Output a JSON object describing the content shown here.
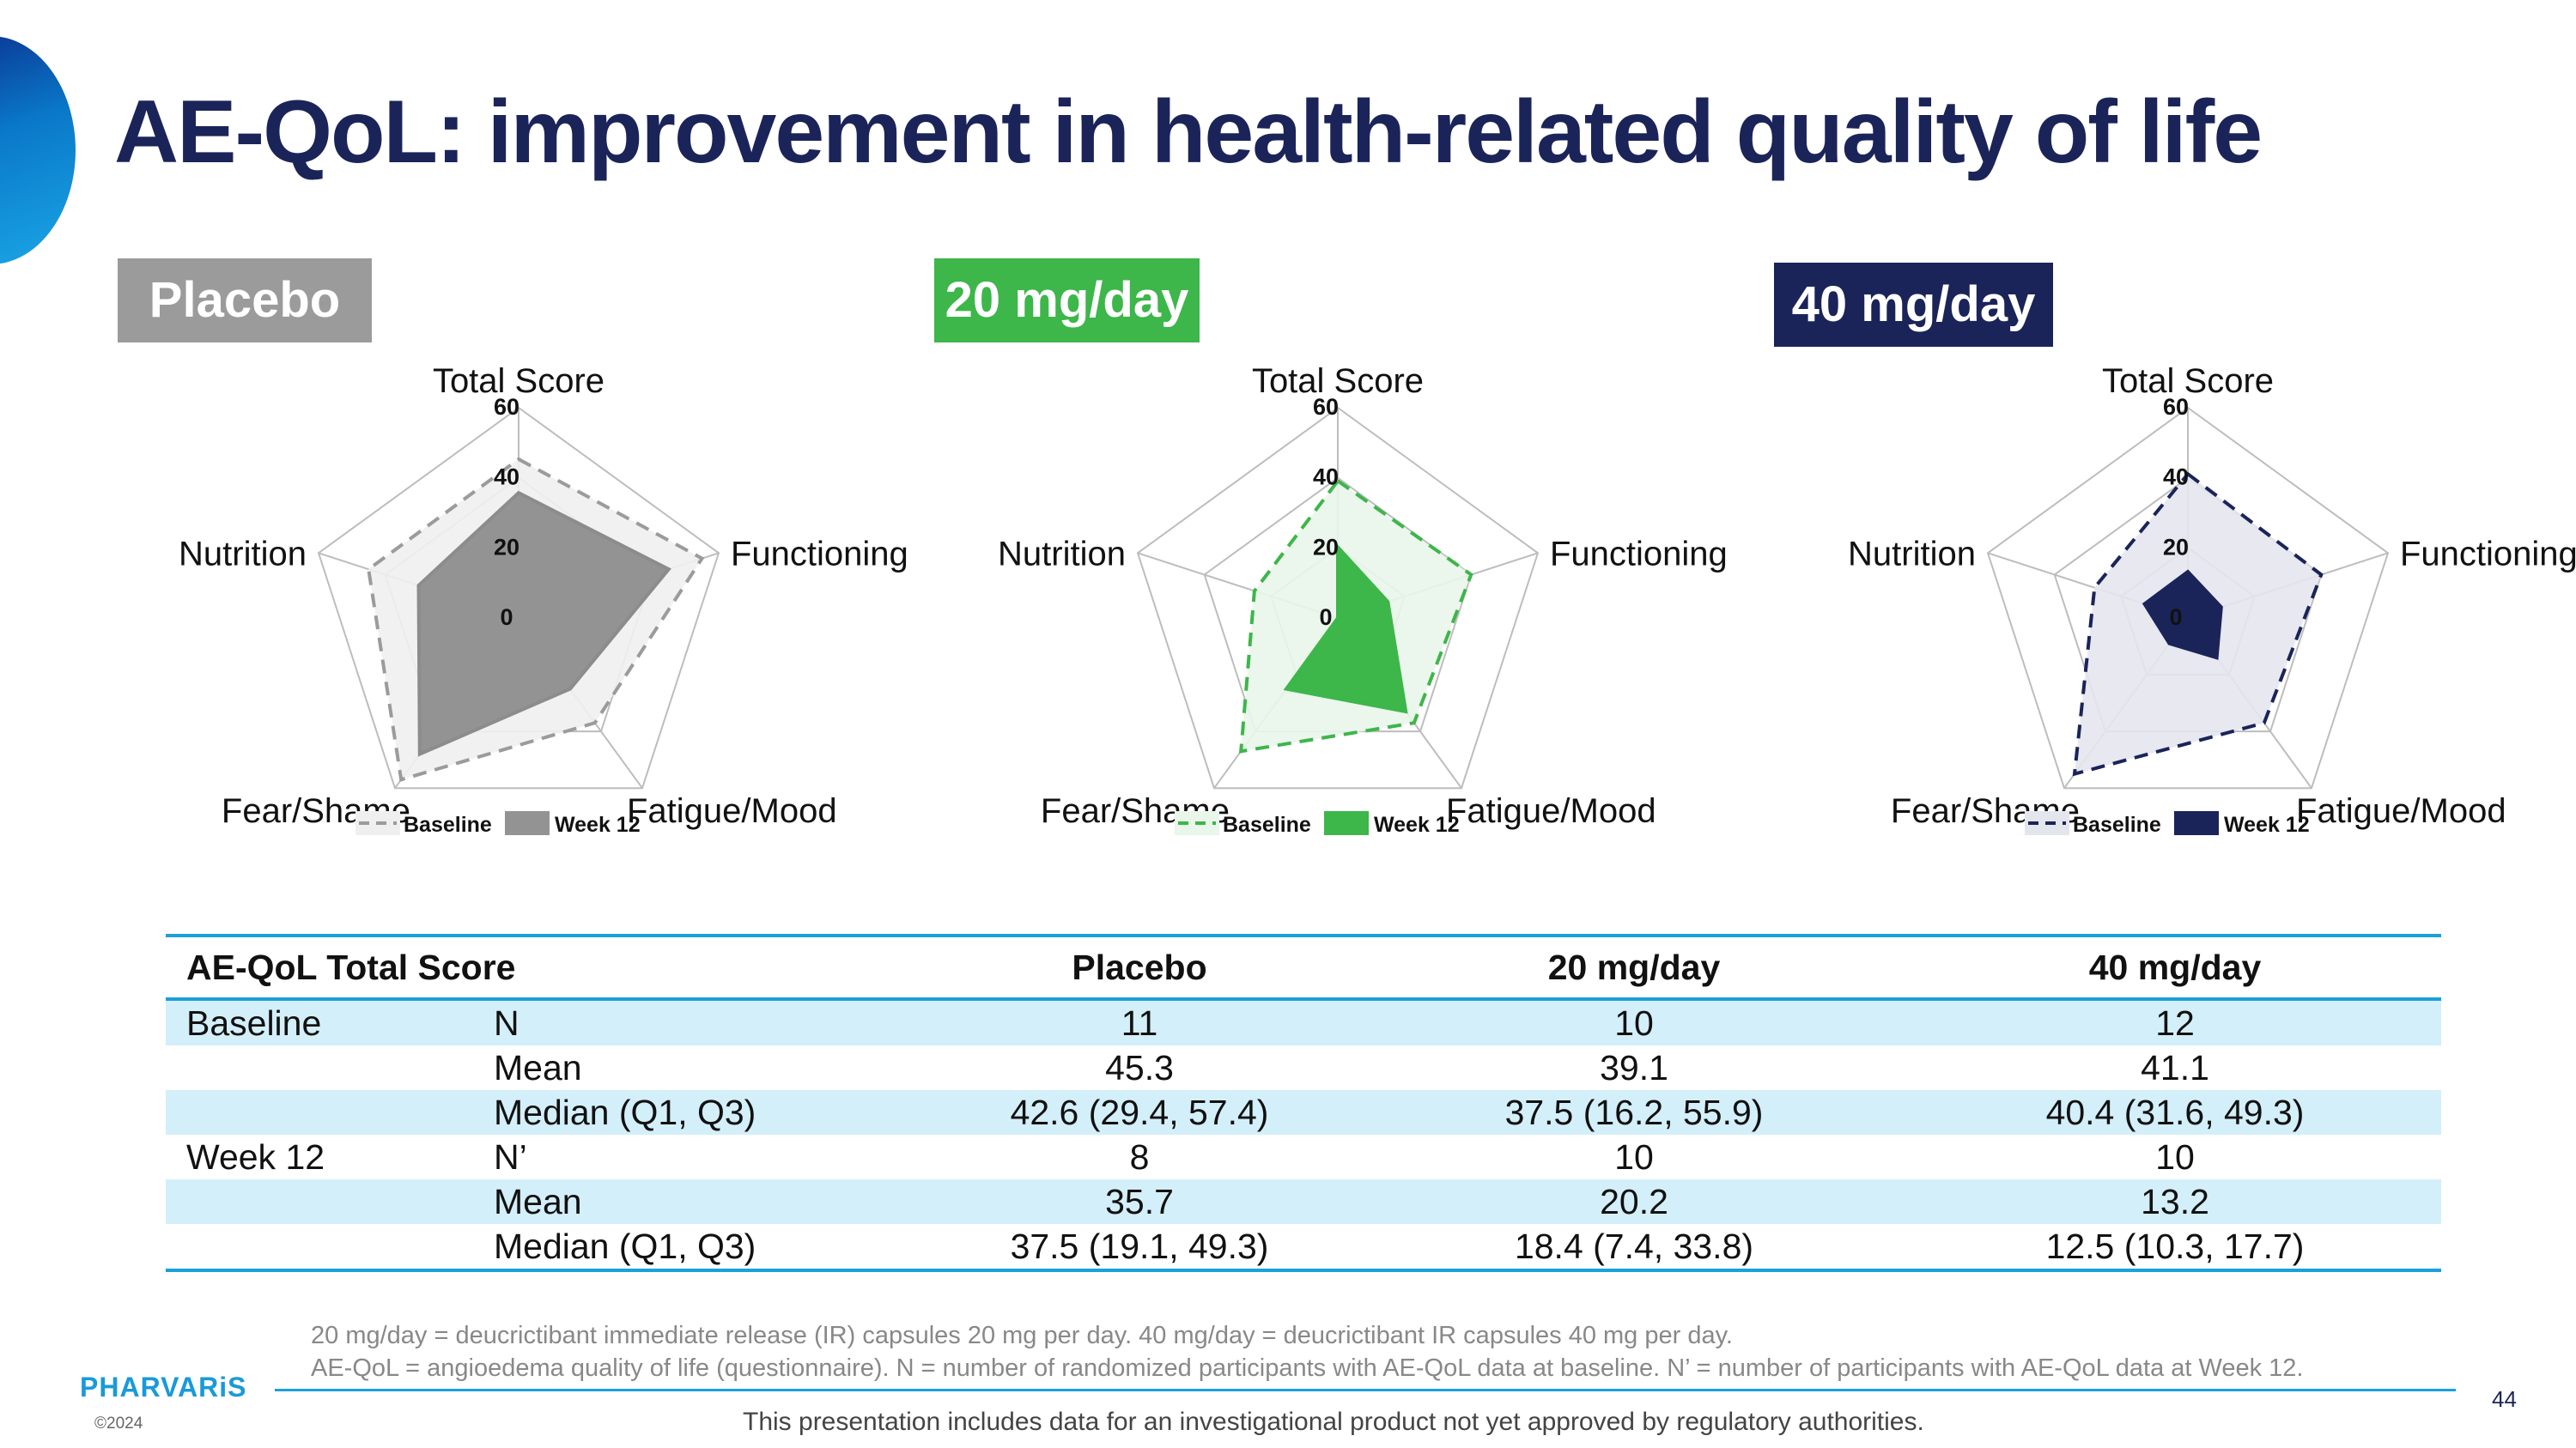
{
  "slide": {
    "title": "AE-QoL: improvement in health-related quality of life",
    "footnotes": [
      "20 mg/day = deucrictibant immediate release (IR) capsules 20 mg per day. 40 mg/day = deucrictibant IR capsules 40 mg per day.",
      "AE-QoL = angioedema quality of life (questionnaire).  N = number of randomized participants with AE-QoL data at baseline. N’ = number of participants with AE-QoL data at Week 12."
    ],
    "disclaimer": "This presentation includes data for an investigational product not yet approved by regulatory authorities.",
    "logo": "PHARVARiS",
    "copyright": "©2024",
    "page_number": "44"
  },
  "chart_data": [
    {
      "type": "radar",
      "badge": "Placebo",
      "badge_color": "#9b9b9b",
      "axes": [
        "Total Score",
        "Functioning",
        "Fatigue/Mood",
        "Fear/Shame",
        "Nutrition"
      ],
      "ticks": [
        "0",
        "20",
        "40",
        "60"
      ],
      "range": [
        0,
        60
      ],
      "series": [
        {
          "name": "Baseline",
          "values": [
            45.3,
            55,
            37,
            57,
            45
          ],
          "style": "dashed",
          "stroke": "#9b9b9b",
          "fill": "#efefef"
        },
        {
          "name": "Week 12",
          "values": [
            35.7,
            45,
            25,
            48,
            30
          ],
          "style": "solid",
          "stroke": "#8c8c8c",
          "fill": "#939393"
        }
      ]
    },
    {
      "type": "radar",
      "badge": "20 mg/day",
      "badge_color": "#3db64a",
      "axes": [
        "Total Score",
        "Functioning",
        "Fatigue/Mood",
        "Fear/Shame",
        "Nutrition"
      ],
      "ticks": [
        "0",
        "20",
        "40",
        "60"
      ],
      "range": [
        0,
        60
      ],
      "series": [
        {
          "name": "Baseline",
          "values": [
            39.1,
            40,
            37,
            47,
            25
          ],
          "style": "dashed",
          "stroke": "#3db64a",
          "fill": "#e9f6ea"
        },
        {
          "name": "Week 12",
          "values": [
            20.2,
            15,
            33,
            25,
            0
          ],
          "style": "solid",
          "stroke": "#3db64a",
          "fill": "#3db64a"
        }
      ]
    },
    {
      "type": "radar",
      "badge": "40 mg/day",
      "badge_color": "#1b2459",
      "axes": [
        "Total Score",
        "Functioning",
        "Fatigue/Mood",
        "Fear/Shame",
        "Nutrition"
      ],
      "ticks": [
        "0",
        "20",
        "40",
        "60"
      ],
      "range": [
        0,
        60
      ],
      "series": [
        {
          "name": "Baseline",
          "values": [
            41.1,
            40,
            37,
            55,
            28
          ],
          "style": "dashed",
          "stroke": "#1b2459",
          "fill": "#e4e6ee"
        },
        {
          "name": "Week 12",
          "values": [
            13.2,
            10,
            14,
            9,
            13
          ],
          "style": "solid",
          "stroke": "#1b2459",
          "fill": "#1b2459"
        }
      ]
    }
  ],
  "table": {
    "headers": [
      "AE-QoL Total Score",
      "Placebo",
      "20 mg/day",
      "40 mg/day"
    ],
    "rows": [
      {
        "group": "Baseline",
        "stat": "N",
        "placebo": "11",
        "mg20": "10",
        "mg40": "12"
      },
      {
        "group": "",
        "stat": "Mean",
        "placebo": "45.3",
        "mg20": "39.1",
        "mg40": "41.1"
      },
      {
        "group": "",
        "stat": "Median (Q1, Q3)",
        "placebo": "42.6 (29.4, 57.4)",
        "mg20": "37.5 (16.2, 55.9)",
        "mg40": "40.4 (31.6, 49.3)"
      },
      {
        "group": "Week 12",
        "stat": "N’",
        "placebo": "8",
        "mg20": "10",
        "mg40": "10"
      },
      {
        "group": "",
        "stat": "Mean",
        "placebo": "35.7",
        "mg20": "20.2",
        "mg40": "13.2"
      },
      {
        "group": "",
        "stat": "Median (Q1, Q3)",
        "placebo": "37.5 (19.1, 49.3)",
        "mg20": "18.4 (7.4, 33.8)",
        "mg40": "12.5 (10.3, 17.7)"
      }
    ]
  }
}
